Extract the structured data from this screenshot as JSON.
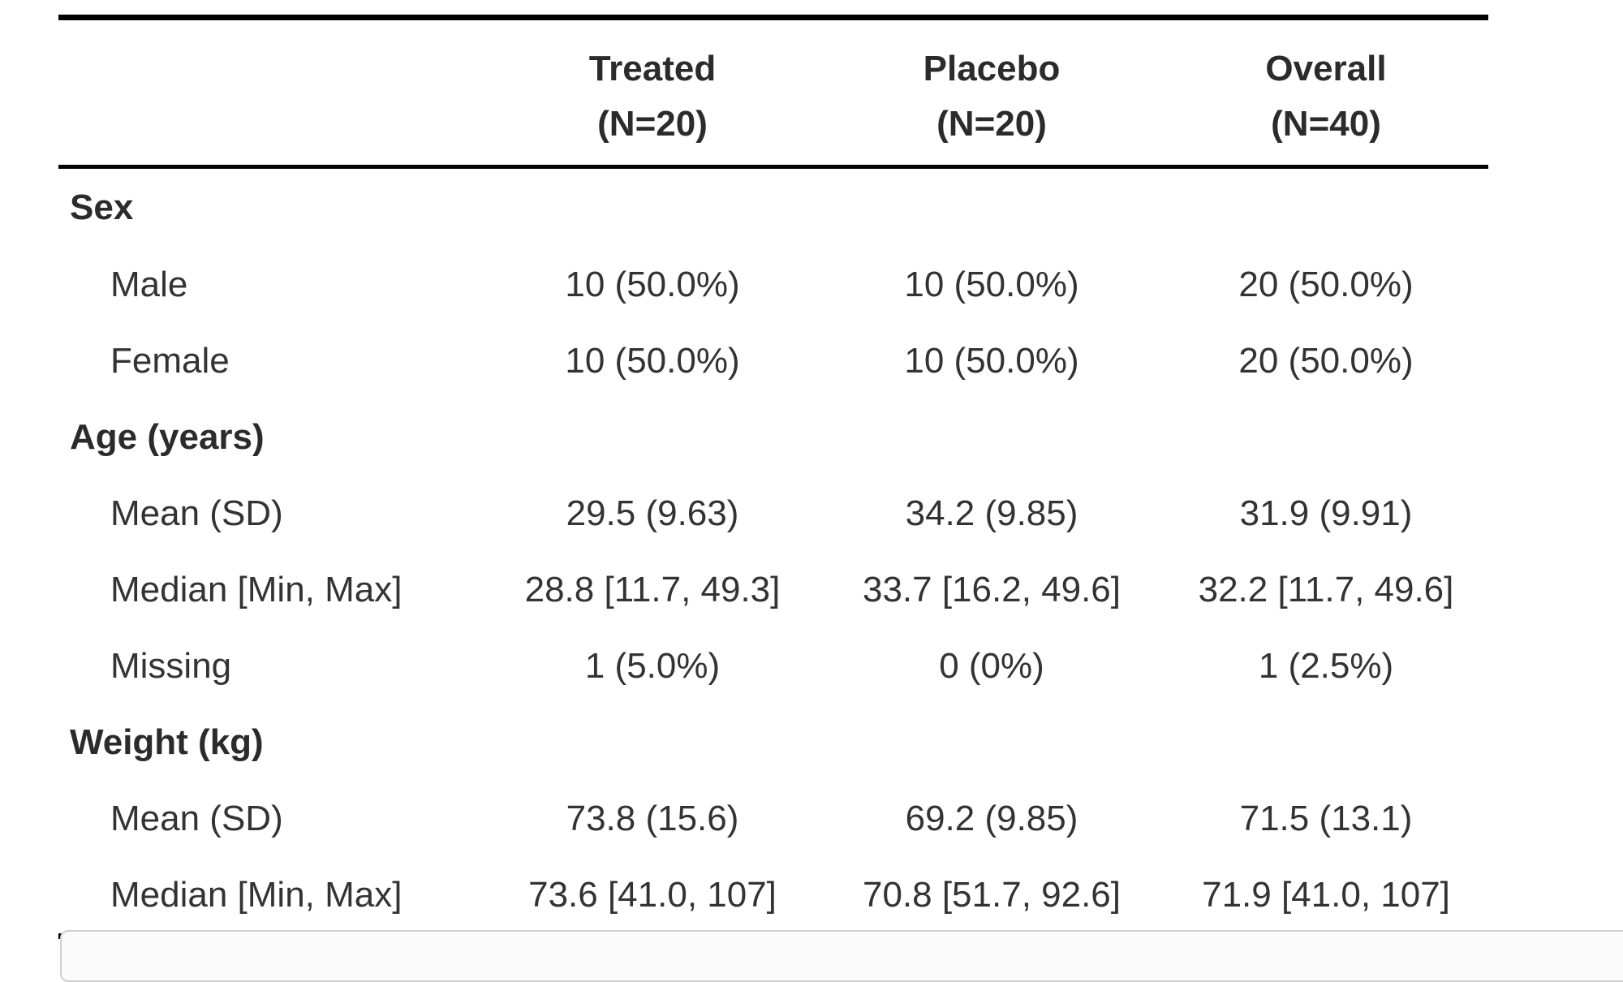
{
  "table": {
    "columns": [
      {
        "name": "",
        "n": ""
      },
      {
        "name": "Treated",
        "n": "(N=20)"
      },
      {
        "name": "Placebo",
        "n": "(N=20)"
      },
      {
        "name": "Overall",
        "n": "(N=40)"
      }
    ],
    "rows": [
      {
        "type": "group",
        "label": "Sex",
        "values": [
          "",
          "",
          ""
        ]
      },
      {
        "type": "item",
        "label": "Male",
        "values": [
          "10 (50.0%)",
          "10 (50.0%)",
          "20 (50.0%)"
        ]
      },
      {
        "type": "item",
        "label": "Female",
        "values": [
          "10 (50.0%)",
          "10 (50.0%)",
          "20 (50.0%)"
        ]
      },
      {
        "type": "group",
        "label": "Age (years)",
        "values": [
          "",
          "",
          ""
        ]
      },
      {
        "type": "item",
        "label": "Mean (SD)",
        "values": [
          "29.5 (9.63)",
          "34.2 (9.85)",
          "31.9 (9.91)"
        ]
      },
      {
        "type": "item",
        "label": "Median [Min, Max]",
        "values": [
          "28.8 [11.7, 49.3]",
          "33.7 [16.2, 49.6]",
          "32.2 [11.7, 49.6]"
        ]
      },
      {
        "type": "item",
        "label": "Missing",
        "values": [
          "1 (5.0%)",
          "0 (0%)",
          "1 (2.5%)"
        ]
      },
      {
        "type": "group",
        "label": "Weight (kg)",
        "values": [
          "",
          "",
          ""
        ]
      },
      {
        "type": "item",
        "label": "Mean (SD)",
        "values": [
          "73.8 (15.6)",
          "69.2 (9.85)",
          "71.5 (13.1)"
        ]
      },
      {
        "type": "item",
        "label": "Median [Min, Max]",
        "values": [
          "73.6 [41.0, 107]",
          "70.8 [51.7, 92.6]",
          "71.9 [41.0, 107]"
        ]
      }
    ]
  }
}
